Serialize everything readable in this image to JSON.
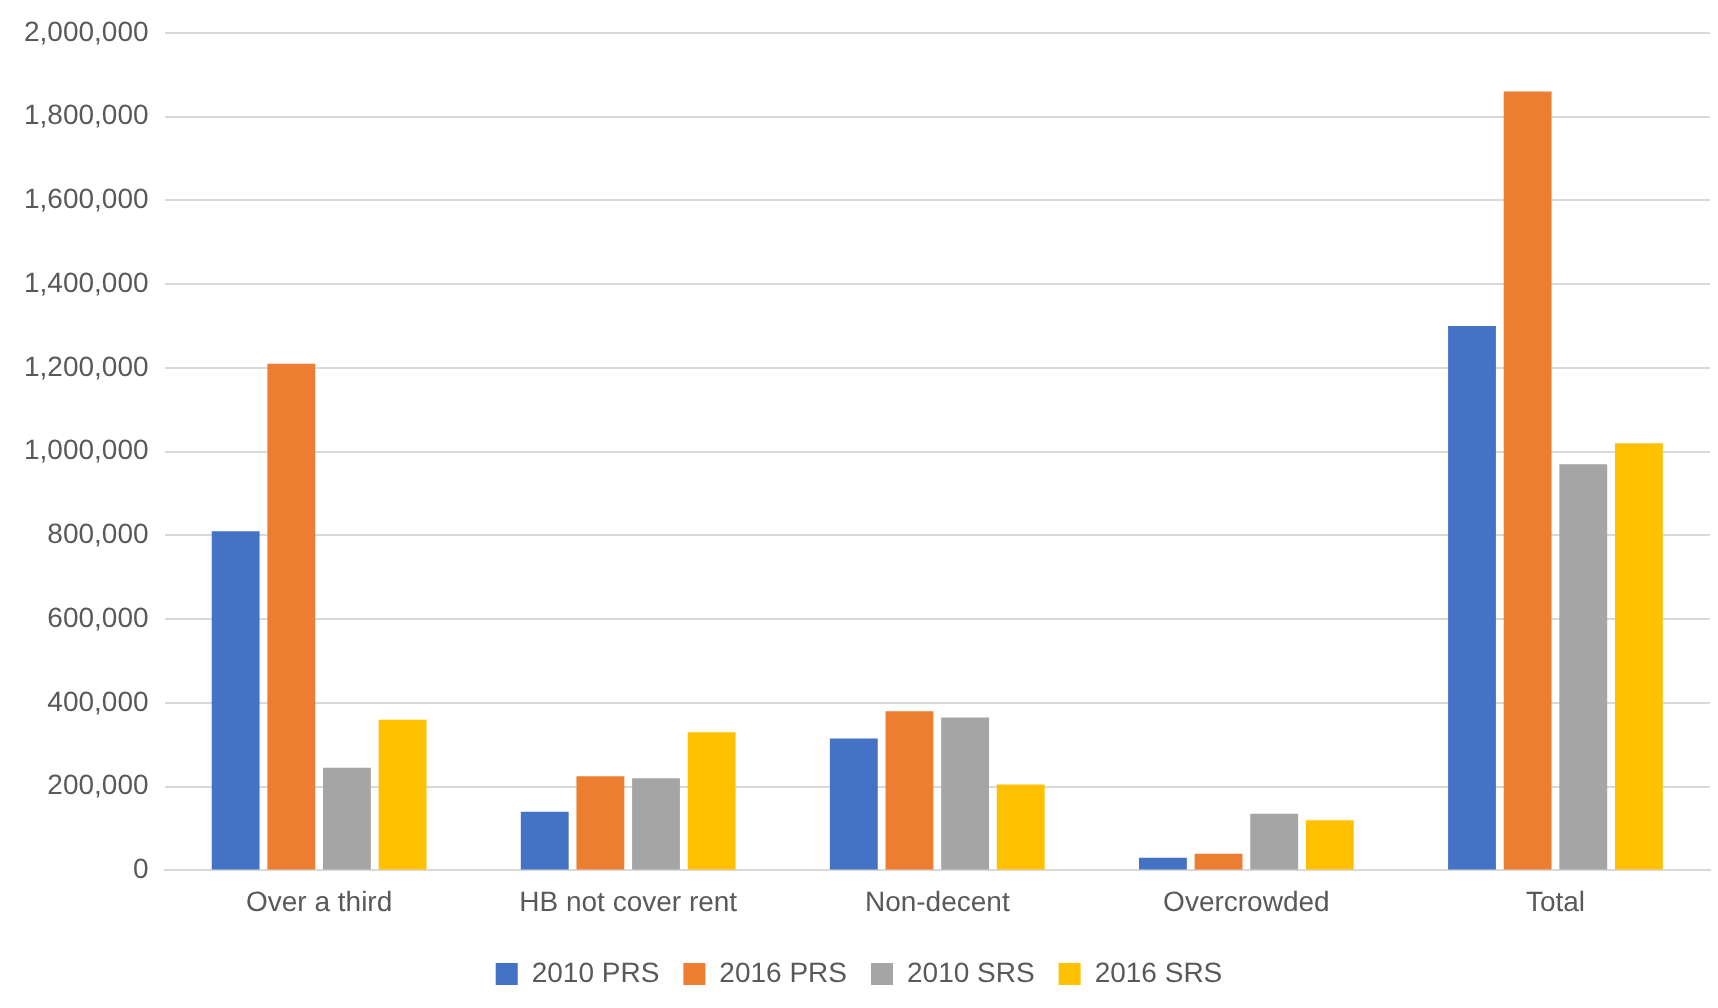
{
  "chart_data": {
    "type": "bar",
    "categories": [
      "Over a third",
      "HB not cover rent",
      "Non-decent",
      "Overcrowded",
      "Total"
    ],
    "series": [
      {
        "name": "2010 PRS",
        "color": "#4472c4",
        "values": [
          810000,
          140000,
          315000,
          30000,
          1300000
        ]
      },
      {
        "name": "2016 PRS",
        "color": "#ed7d31",
        "values": [
          1210000,
          225000,
          380000,
          40000,
          1860000
        ]
      },
      {
        "name": "2010 SRS",
        "color": "#a5a5a5",
        "values": [
          245000,
          220000,
          365000,
          135000,
          970000
        ]
      },
      {
        "name": "2016 SRS",
        "color": "#ffc000",
        "values": [
          360000,
          330000,
          205000,
          120000,
          1020000
        ]
      }
    ],
    "ylim": [
      0,
      2000000
    ],
    "yticks": [
      {
        "value": 0,
        "label": "0"
      },
      {
        "value": 200000,
        "label": "200,000"
      },
      {
        "value": 400000,
        "label": "400,000"
      },
      {
        "value": 600000,
        "label": "600,000"
      },
      {
        "value": 800000,
        "label": "800,000"
      },
      {
        "value": 1000000,
        "label": "1,000,000"
      },
      {
        "value": 1200000,
        "label": "1,200,000"
      },
      {
        "value": 1400000,
        "label": "1,400,000"
      },
      {
        "value": 1600000,
        "label": "1,600,000"
      },
      {
        "value": 1800000,
        "label": "1,800,000"
      },
      {
        "value": 2000000,
        "label": "2,000,000"
      }
    ],
    "grid": "y",
    "legend": "bottom"
  }
}
